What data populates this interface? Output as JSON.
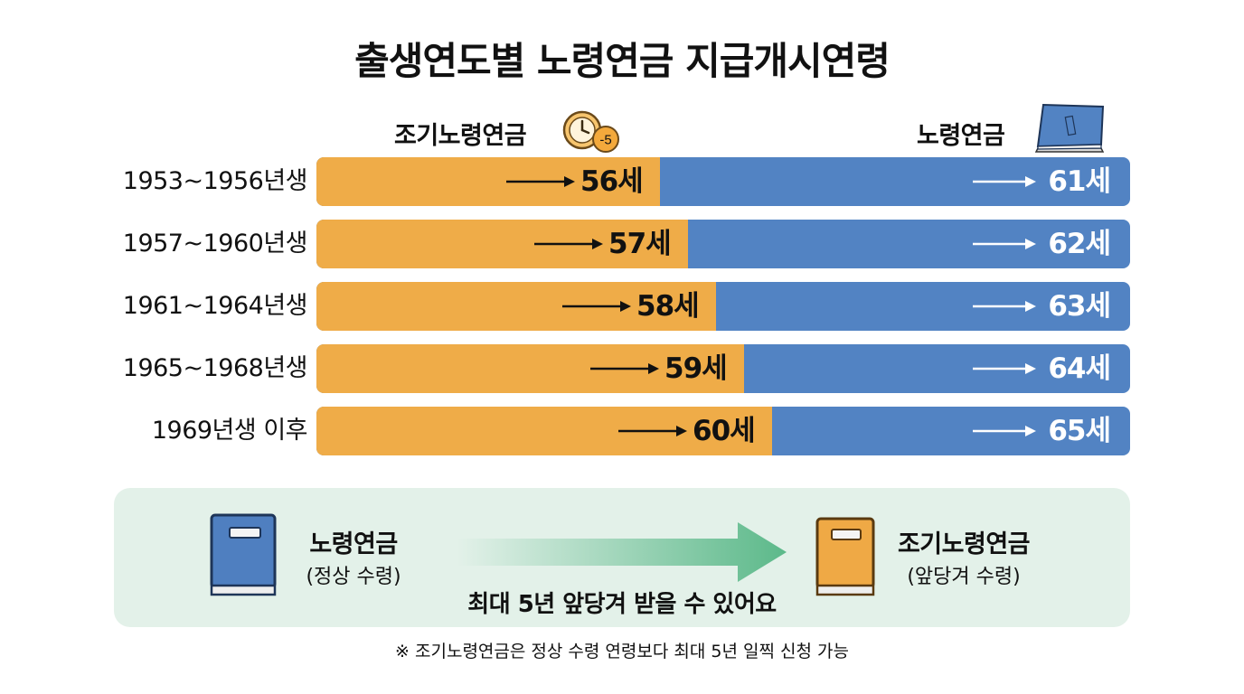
{
  "title": "출생연도별 노령연금 지급개시연령",
  "headers": {
    "early": "조기노령연금",
    "early_icon": "clock-minus-5-icon",
    "early_icon_text": "-5",
    "normal": "노령연금",
    "normal_icon": "pension-book-icon"
  },
  "colors": {
    "early": "#efac48",
    "normal": "#5283c3",
    "panel": "#e3f1e9",
    "arrow_green": "#5cb98a"
  },
  "chart_data": {
    "type": "bar",
    "orientation": "horizontal",
    "categories": [
      "1953~1956년생",
      "1957~1960년생",
      "1961~1964년생",
      "1965~1968년생",
      "1969년생 이후"
    ],
    "series": [
      {
        "name": "조기노령연금",
        "values": [
          56,
          57,
          58,
          59,
          60
        ],
        "labels": [
          "56세",
          "57세",
          "58세",
          "59세",
          "60세"
        ]
      },
      {
        "name": "노령연금",
        "values": [
          61,
          62,
          63,
          64,
          65
        ],
        "labels": [
          "61세",
          "62세",
          "63세",
          "64세",
          "65세"
        ]
      }
    ]
  },
  "panel": {
    "normal_label": "노령연금",
    "normal_sub": "(정상 수령)",
    "early_label": "조기노령연금",
    "early_sub": "(앞당겨 수령)",
    "message": "최대 5년 앞당겨 받을 수 있어요"
  },
  "footnote": "※ 조기노령연금은 정상 수령 연령보다 최대 5년 일찍 신청 가능"
}
